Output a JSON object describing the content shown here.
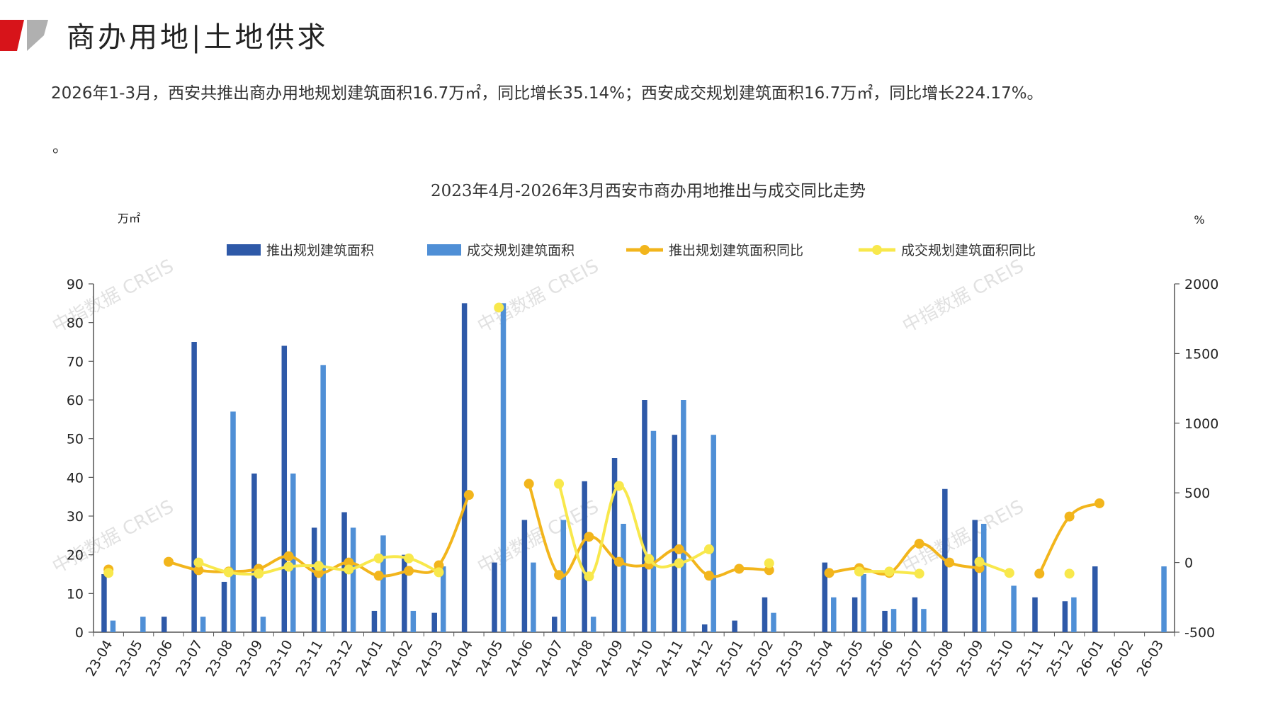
{
  "header": {
    "title": "商办用地|土地供求",
    "summary": "2026年1-3月，西安共推出商办用地规划建筑面积16.7万㎡，同比增长35.14%；西安成交规划建筑面积16.7万㎡，同比增长224.17%。",
    "trailing_mark": "。",
    "watermark": "中指数据 CREIS"
  },
  "colors": {
    "logo_red": "#d7141a",
    "logo_gray": "#b0b0b0",
    "supply_bar": "#2e59a8",
    "deal_bar": "#4f8fd6",
    "supply_yoy": "#f2b51c",
    "deal_yoy": "#f8e84c"
  },
  "chart_data": {
    "type": "bar",
    "title": "2023年4月-2026年3月西安市商办用地推出与成交同比走势",
    "y_left_unit": "万㎡",
    "y_right_unit": "%",
    "ylim_left": [
      0,
      90
    ],
    "y_left_ticks": [
      0,
      10,
      20,
      30,
      40,
      50,
      60,
      70,
      80,
      90
    ],
    "ylim_right": [
      -500,
      2000
    ],
    "y_right_ticks": [
      -500,
      0,
      500,
      1000,
      1500,
      2000
    ],
    "legend_position": "top",
    "grid": false,
    "categories": [
      "23-04",
      "23-05",
      "23-06",
      "23-07",
      "23-08",
      "23-09",
      "23-10",
      "23-11",
      "23-12",
      "24-01",
      "24-02",
      "24-03",
      "24-04",
      "24-05",
      "24-06",
      "24-07",
      "24-08",
      "24-09",
      "24-10",
      "24-11",
      "24-12",
      "25-01",
      "25-02",
      "25-03",
      "25-04",
      "25-05",
      "25-06",
      "25-07",
      "25-08",
      "25-09",
      "25-10",
      "25-11",
      "25-12",
      "26-01",
      "26-02",
      "26-03"
    ],
    "series": [
      {
        "name": "推出规划建筑面积",
        "kind": "bar",
        "axis": "left",
        "values": [
          15,
          0,
          4,
          75,
          13,
          41,
          74,
          27,
          31,
          5.5,
          20,
          5,
          85,
          18,
          29,
          4,
          39,
          45,
          60,
          51,
          2,
          3,
          9,
          0,
          18,
          9,
          5.5,
          9,
          37,
          29,
          0,
          9,
          8,
          17,
          0,
          0
        ]
      },
      {
        "name": "成交规划建筑面积",
        "kind": "bar",
        "axis": "left",
        "values": [
          3,
          4,
          0,
          4,
          57,
          4,
          41,
          69,
          27,
          25,
          5.5,
          17,
          0,
          85,
          18,
          29,
          4,
          28,
          52,
          60,
          51,
          0,
          5,
          0,
          9,
          15,
          6,
          6,
          0,
          28,
          12,
          0,
          9,
          0,
          0,
          17
        ]
      },
      {
        "name": "推出规划建筑面积同比",
        "kind": "line",
        "axis": "right",
        "values": [
          -50,
          null,
          5,
          -55,
          -65,
          -45,
          45,
          -75,
          0,
          -95,
          -60,
          -20,
          485,
          null,
          565,
          -90,
          185,
          5,
          -15,
          95,
          -95,
          -45,
          -55,
          null,
          -75,
          -40,
          -75,
          135,
          0,
          -40,
          null,
          -80,
          330,
          425,
          null,
          null
        ]
      },
      {
        "name": "成交规划建筑面积同比",
        "kind": "line",
        "axis": "right",
        "values": [
          -75,
          null,
          null,
          0,
          -70,
          -80,
          -30,
          -25,
          -50,
          30,
          30,
          -70,
          null,
          1830,
          null,
          565,
          -100,
          550,
          25,
          -5,
          95,
          null,
          -5,
          null,
          null,
          -65,
          -65,
          -80,
          null,
          5,
          -75,
          null,
          -80,
          null,
          null,
          null
        ]
      }
    ]
  }
}
